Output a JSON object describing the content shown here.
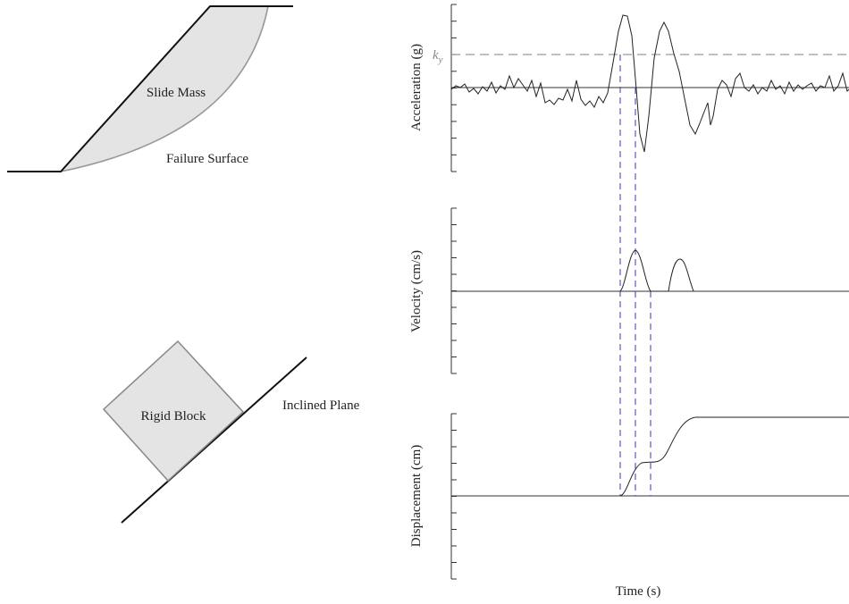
{
  "left": {
    "slope": {
      "mass_label": "Slide Mass",
      "surface_label": "Failure Surface"
    },
    "block": {
      "block_label": "Rigid Block",
      "plane_label": "Inclined Plane"
    }
  },
  "right": {
    "acceleration_label": "Acceleration (g)",
    "ky_main": "k",
    "ky_sub": "y",
    "velocity_label": "Velocity (cm/s)",
    "displacement_label": "Displacement (cm)",
    "time_label": "Time (s)"
  }
}
